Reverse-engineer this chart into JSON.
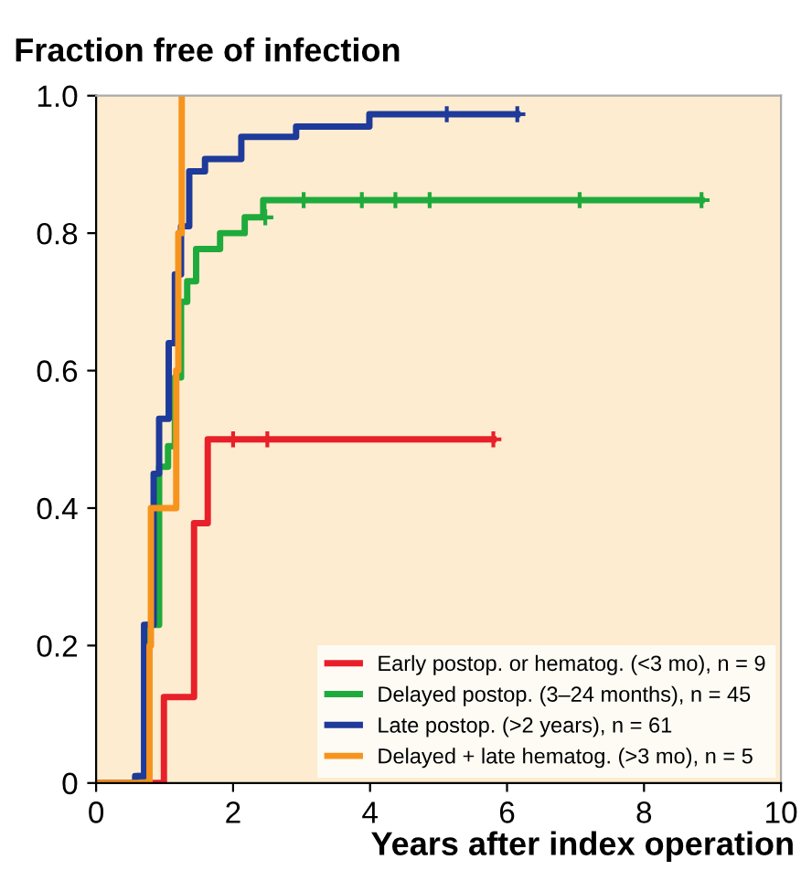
{
  "chart_data": {
    "type": "step",
    "ylabel": "Fraction free of infection",
    "xlabel": "Years after index operation",
    "xlim": [
      0,
      10
    ],
    "xticks": [
      0,
      2,
      4,
      6,
      8,
      10
    ],
    "ylim": [
      0,
      1.0
    ],
    "yticks": [
      0,
      0.2,
      0.4,
      0.6,
      0.8,
      {
        "value": 1.0,
        "label": "1.0"
      }
    ],
    "grid": false,
    "legend": "bottom right",
    "marker": "none",
    "line_style": "solid",
    "series": [
      {
        "name": "Early postop. or hematog. (<3 mo), n = 9",
        "color": "#e8202a",
        "x": [
          0,
          0.99,
          1.43,
          1.63,
          5.8
        ],
        "values": [
          0,
          0.125,
          0.378,
          0.5,
          0.5
        ]
      },
      {
        "name": "Delayed postop. (3–24 months), n = 45",
        "color": "#1faa3c",
        "x": [
          0,
          0.6,
          0.75,
          0.92,
          1.05,
          1.15,
          1.24,
          1.33,
          1.46,
          1.81,
          2.17,
          2.44,
          8.84
        ],
        "values": [
          0,
          0.01,
          0.23,
          0.46,
          0.49,
          0.59,
          0.7,
          0.73,
          0.777,
          0.8,
          0.823,
          0.848,
          0.848
        ]
      },
      {
        "name": "Late postop. (>2 years), n = 61",
        "color": "#1e3a9a",
        "x": [
          0,
          0.57,
          0.7,
          0.84,
          0.92,
          1.06,
          1.15,
          1.24,
          1.36,
          1.59,
          2.12,
          2.92,
          3.99,
          6.15
        ],
        "values": [
          0,
          0.01,
          0.23,
          0.45,
          0.53,
          0.64,
          0.74,
          0.81,
          0.89,
          0.908,
          0.94,
          0.955,
          0.973,
          0.973
        ]
      },
      {
        "name": "Delayed + late hematog. (>3 mo), n = 5",
        "color": "#f7941d",
        "x": [
          0,
          0.78,
          0.8,
          1.17,
          1.2,
          1.25
        ],
        "values": [
          0,
          0.2,
          0.4,
          0.6,
          0.8,
          1.0
        ]
      },
      {
        "type": "scatter",
        "marker": "cross",
        "color": "#e8202a",
        "x": [
          2.0,
          2.5,
          5.8
        ],
        "values": [
          0.5,
          0.5,
          0.5
        ]
      },
      {
        "type": "scatter",
        "marker": "cross",
        "color": "#1faa3c",
        "x": [
          2.47,
          3.03,
          3.88,
          4.37,
          4.87,
          7.06,
          8.84
        ],
        "values": [
          0.823,
          0.848,
          0.848,
          0.848,
          0.848,
          0.848,
          0.848
        ]
      },
      {
        "type": "scatter",
        "marker": "cross",
        "color": "#1e3a9a",
        "x": [
          5.12,
          6.15
        ],
        "values": [
          0.973,
          0.973
        ]
      }
    ]
  }
}
